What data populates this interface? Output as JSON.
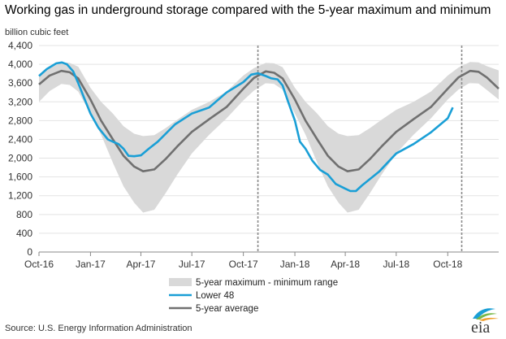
{
  "title": "Working gas in underground  storage compared with the 5-year maximum and minimum",
  "source": "Source:  U.S. Energy Information Administration",
  "logo_text": "eia",
  "colors": {
    "band": "#d9d9d9",
    "lower48": "#1a9fd6",
    "avg": "#707070",
    "grid": "#e3e3e3",
    "marker": "#8a8a8a"
  },
  "chart_data": {
    "type": "line",
    "ylabel": "billion cubic feet",
    "ylim": [
      0,
      4400
    ],
    "yticks": [
      0,
      400,
      800,
      1200,
      1600,
      2000,
      2400,
      2800,
      3200,
      3600,
      4000,
      4400
    ],
    "ytick_labels": [
      "0",
      "400",
      "800",
      "1,200",
      "1,600",
      "2,000",
      "2,400",
      "2,800",
      "3,200",
      "3,600",
      "4,000",
      "4,400"
    ],
    "xlim": [
      "2016-10-01",
      "2018-12-31"
    ],
    "xticks": [
      {
        "date": "2016-10-01",
        "label": "Oct-16"
      },
      {
        "date": "2017-01-01",
        "label": "Jan-17"
      },
      {
        "date": "2017-04-01",
        "label": "Apr-17"
      },
      {
        "date": "2017-07-01",
        "label": "Jul-17"
      },
      {
        "date": "2017-10-01",
        "label": "Oct-17"
      },
      {
        "date": "2018-01-01",
        "label": "Jan-18"
      },
      {
        "date": "2018-04-01",
        "label": "Apr-18"
      },
      {
        "date": "2018-07-01",
        "label": "Jul-18"
      },
      {
        "date": "2018-10-01",
        "label": "Oct-18"
      }
    ],
    "grid": "horizontal",
    "reference_lines": [
      "2017-10-27",
      "2018-10-26"
    ],
    "legend_placement": "bottom-center",
    "series": [
      {
        "name": "5-year maximum - minimum range",
        "kind": "band",
        "x": [
          "2016-10-01",
          "2016-10-20",
          "2016-11-10",
          "2016-11-25",
          "2016-12-10",
          "2017-01-01",
          "2017-01-20",
          "2017-02-10",
          "2017-03-01",
          "2017-03-20",
          "2017-04-05",
          "2017-04-25",
          "2017-05-15",
          "2017-06-05",
          "2017-07-01",
          "2017-08-01",
          "2017-09-01",
          "2017-10-01",
          "2017-10-20",
          "2017-11-10",
          "2017-11-25",
          "2017-12-10",
          "2018-01-01",
          "2018-01-20",
          "2018-02-10",
          "2018-03-01",
          "2018-03-20",
          "2018-04-05",
          "2018-04-25",
          "2018-05-15",
          "2018-06-05",
          "2018-07-01",
          "2018-08-01",
          "2018-09-01",
          "2018-10-01",
          "2018-10-20",
          "2018-11-10",
          "2018-11-25",
          "2018-12-10",
          "2018-12-31"
        ],
        "max": [
          3750,
          3920,
          4040,
          4030,
          3950,
          3500,
          3200,
          2950,
          2680,
          2520,
          2470,
          2490,
          2640,
          2820,
          3030,
          3200,
          3420,
          3760,
          3920,
          4030,
          4020,
          3940,
          3500,
          3200,
          2950,
          2680,
          2520,
          2470,
          2490,
          2640,
          2820,
          3030,
          3200,
          3420,
          3760,
          3930,
          4050,
          4040,
          3960,
          3870
        ],
        "min": [
          3200,
          3430,
          3580,
          3560,
          3420,
          2950,
          2500,
          1900,
          1400,
          1050,
          840,
          900,
          1250,
          1650,
          2100,
          2500,
          2850,
          3230,
          3440,
          3600,
          3580,
          3460,
          2950,
          2500,
          1900,
          1400,
          1050,
          840,
          900,
          1250,
          1650,
          2100,
          2500,
          2850,
          3250,
          3460,
          3610,
          3590,
          3450,
          3250
        ]
      },
      {
        "name": "Lower 48",
        "kind": "line",
        "x": [
          "2016-10-01",
          "2016-10-15",
          "2016-11-01",
          "2016-11-11",
          "2016-11-20",
          "2016-12-01",
          "2016-12-10",
          "2016-12-20",
          "2017-01-01",
          "2017-01-15",
          "2017-02-01",
          "2017-02-10",
          "2017-02-20",
          "2017-03-01",
          "2017-03-10",
          "2017-03-20",
          "2017-04-01",
          "2017-04-15",
          "2017-05-01",
          "2017-06-01",
          "2017-07-01",
          "2017-08-01",
          "2017-09-01",
          "2017-10-01",
          "2017-10-15",
          "2017-10-27",
          "2017-11-10",
          "2017-11-20",
          "2017-12-01",
          "2017-12-10",
          "2017-12-20",
          "2018-01-01",
          "2018-01-10",
          "2018-01-20",
          "2018-02-01",
          "2018-02-15",
          "2018-03-01",
          "2018-03-15",
          "2018-04-01",
          "2018-04-10",
          "2018-04-20",
          "2018-05-01",
          "2018-06-01",
          "2018-07-01",
          "2018-08-01",
          "2018-09-01",
          "2018-10-01",
          "2018-10-10"
        ],
        "y": [
          3750,
          3900,
          4020,
          4040,
          4000,
          3850,
          3600,
          3300,
          2950,
          2650,
          2400,
          2350,
          2300,
          2200,
          2050,
          2040,
          2060,
          2200,
          2350,
          2720,
          2950,
          3080,
          3400,
          3620,
          3780,
          3810,
          3750,
          3700,
          3680,
          3550,
          3200,
          2800,
          2350,
          2200,
          1950,
          1750,
          1650,
          1450,
          1350,
          1300,
          1300,
          1420,
          1720,
          2100,
          2300,
          2550,
          2850,
          3080
        ]
      },
      {
        "name": "5-year average",
        "kind": "line",
        "x": [
          "2016-10-01",
          "2016-10-20",
          "2016-11-10",
          "2016-11-25",
          "2016-12-10",
          "2017-01-01",
          "2017-01-20",
          "2017-02-10",
          "2017-03-01",
          "2017-03-20",
          "2017-04-05",
          "2017-04-25",
          "2017-05-15",
          "2017-06-05",
          "2017-07-01",
          "2017-08-01",
          "2017-09-01",
          "2017-10-01",
          "2017-10-20",
          "2017-11-10",
          "2017-11-25",
          "2017-12-10",
          "2018-01-01",
          "2018-01-20",
          "2018-02-10",
          "2018-03-01",
          "2018-03-20",
          "2018-04-05",
          "2018-04-25",
          "2018-05-15",
          "2018-06-05",
          "2018-07-01",
          "2018-08-01",
          "2018-09-01",
          "2018-10-01",
          "2018-10-20",
          "2018-11-10",
          "2018-11-25",
          "2018-12-10",
          "2018-12-31"
        ],
        "y": [
          3570,
          3760,
          3860,
          3830,
          3700,
          3250,
          2800,
          2400,
          2050,
          1820,
          1720,
          1760,
          1980,
          2250,
          2560,
          2830,
          3090,
          3480,
          3710,
          3850,
          3820,
          3700,
          3250,
          2800,
          2400,
          2050,
          1820,
          1720,
          1760,
          1980,
          2250,
          2560,
          2830,
          3090,
          3480,
          3720,
          3860,
          3840,
          3720,
          3480
        ]
      }
    ]
  }
}
